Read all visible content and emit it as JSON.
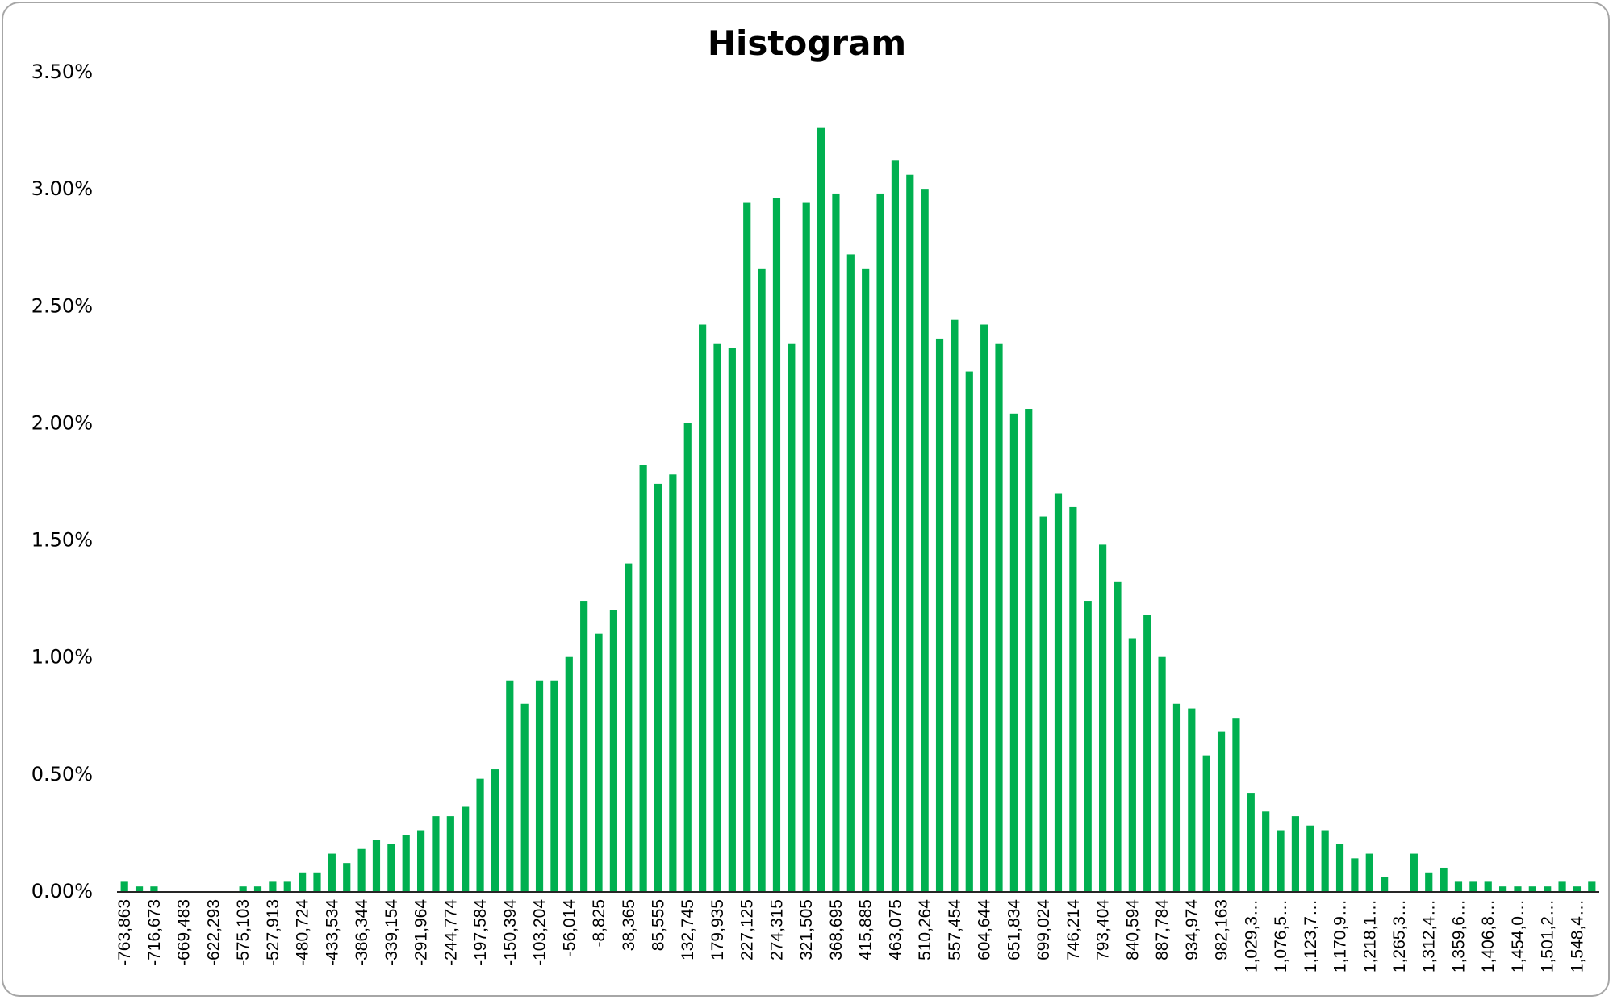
{
  "chart_data": {
    "type": "bar",
    "title": "Histogram",
    "xlabel": "",
    "ylabel": "",
    "ylim": [
      0,
      3.5
    ],
    "y_tick_labels": [
      "0.00%",
      "0.50%",
      "1.00%",
      "1.50%",
      "2.00%",
      "2.50%",
      "3.00%",
      "3.50%"
    ],
    "y_ticks": [
      0,
      0.5,
      1,
      1.5,
      2,
      2.5,
      3,
      3.5
    ],
    "grid": false,
    "legend": "none",
    "bar_color": "#00b050",
    "x_tick_labels": [
      "-763,863",
      "-716,673",
      "-669,483",
      "-622,293",
      "-575,103",
      "-527,913",
      "-480,724",
      "-433,534",
      "-386,344",
      "-339,154",
      "-291,964",
      "-244,774",
      "-197,584",
      "-150,394",
      "-103,204",
      "-56,014",
      "-8,825",
      "38,365",
      "85,555",
      "132,745",
      "179,935",
      "227,125",
      "274,315",
      "321,505",
      "368,695",
      "415,885",
      "463,075",
      "510,264",
      "557,454",
      "604,644",
      "651,834",
      "699,024",
      "746,214",
      "793,404",
      "840,594",
      "887,784",
      "934,974",
      "982,163",
      "1,029,3…",
      "1,076,5…",
      "1,123,7…",
      "1,170,9…",
      "1,218,1…",
      "1,265,3…",
      "1,312,4…",
      "1,359,6…",
      "1,406,8…",
      "1,454,0…",
      "1,501,2…",
      "1,548,4…"
    ],
    "values_percent": [
      0.04,
      0.02,
      0.02,
      0,
      0,
      0,
      0,
      0,
      0.02,
      0.02,
      0.04,
      0.04,
      0.08,
      0.08,
      0.16,
      0.12,
      0.18,
      0.22,
      0.2,
      0.24,
      0.26,
      0.32,
      0.32,
      0.36,
      0.48,
      0.52,
      0.9,
      0.8,
      0.9,
      0.9,
      1.0,
      1.24,
      1.1,
      1.2,
      1.4,
      1.82,
      1.74,
      1.78,
      2.0,
      2.42,
      2.34,
      2.32,
      2.94,
      2.66,
      2.96,
      2.34,
      2.94,
      3.26,
      2.98,
      2.72,
      2.66,
      2.98,
      3.12,
      3.06,
      3.0,
      2.36,
      2.44,
      2.22,
      2.42,
      2.34,
      2.04,
      2.06,
      1.6,
      1.7,
      1.64,
      1.24,
      1.48,
      1.32,
      1.08,
      1.18,
      1.0,
      0.8,
      0.78,
      0.58,
      0.68,
      0.74,
      0.42,
      0.34,
      0.26,
      0.32,
      0.28,
      0.26,
      0.2,
      0.14,
      0.16,
      0.06,
      0,
      0.16,
      0.08,
      0.1,
      0.04,
      0.04,
      0.04,
      0.02,
      0.02,
      0.02,
      0.02,
      0.04,
      0.02,
      0.04
    ]
  }
}
